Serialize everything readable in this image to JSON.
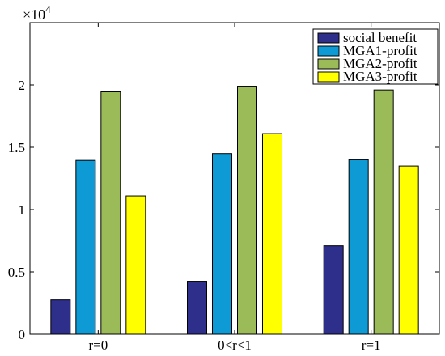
{
  "chart_data": {
    "type": "bar",
    "title": "",
    "xlabel": "",
    "ylabel": "",
    "categories": [
      "r=0",
      "0<r<1",
      "r=1"
    ],
    "series": [
      {
        "name": "social benefit",
        "values": [
          2750,
          4250,
          7100
        ],
        "color": "#2e2e8b"
      },
      {
        "name": "MGA1-profit",
        "values": [
          13950,
          14500,
          14000
        ],
        "color": "#0e9ad5"
      },
      {
        "name": "MGA2-profit",
        "values": [
          19450,
          19900,
          19600
        ],
        "color": "#9bbb59"
      },
      {
        "name": "MGA3-profit",
        "values": [
          11100,
          16100,
          13500
        ],
        "color": "#ffff00"
      }
    ],
    "ylim": [
      0,
      25000
    ],
    "yticks": [
      0,
      0.5,
      1,
      1.5,
      2
    ],
    "y_multiplier": {
      "base": "×10",
      "exponent": "4"
    },
    "legend_position": "top-right",
    "grid": false
  }
}
